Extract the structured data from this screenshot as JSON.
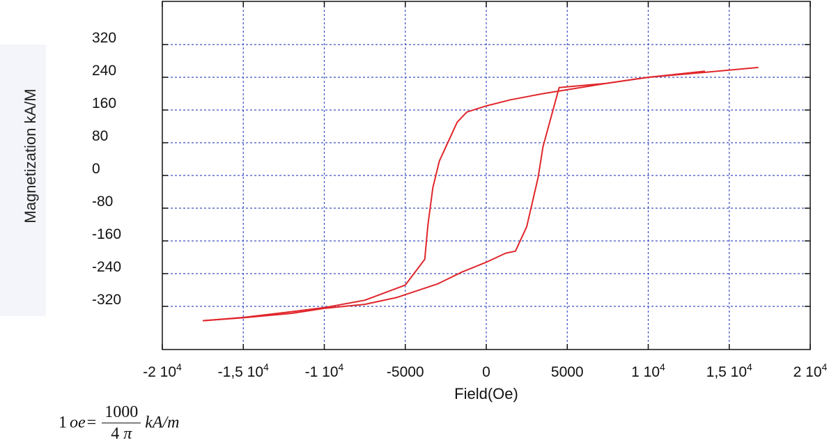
{
  "chart_data": {
    "type": "line",
    "xlabel": "Field(Oe)",
    "ylabel": "Magnetization kA/M",
    "xlim": [
      -20000,
      20000
    ],
    "ylim": [
      -400,
      400
    ],
    "grid": true,
    "x_ticks": [
      {
        "value": -20000,
        "mantissa": "-2",
        "exponent": "4"
      },
      {
        "value": -15000,
        "mantissa": "-1,5",
        "exponent": "4"
      },
      {
        "value": -10000,
        "mantissa": "-1",
        "exponent": "4"
      },
      {
        "value": -5000,
        "mantissa": "-5000",
        "exponent": ""
      },
      {
        "value": 0,
        "mantissa": "0",
        "exponent": ""
      },
      {
        "value": 5000,
        "mantissa": "5000",
        "exponent": ""
      },
      {
        "value": 10000,
        "mantissa": "1",
        "exponent": "4"
      },
      {
        "value": 15000,
        "mantissa": "1,5",
        "exponent": "4"
      },
      {
        "value": 20000,
        "mantissa": "2",
        "exponent": "4"
      }
    ],
    "y_ticks": [
      320,
      240,
      160,
      80,
      0,
      -80,
      -160,
      -240,
      -320
    ],
    "series": [
      {
        "color": "#e0262b",
        "x": [
          -17500,
          -15000,
          -12000,
          -10000,
          -7500,
          -5000,
          -3800,
          -3600,
          -3300,
          -2900,
          -1800,
          -1200,
          0,
          1500,
          3500,
          7400,
          10000,
          13500,
          16800
        ],
        "y": [
          -355,
          -347,
          -333,
          -323,
          -305,
          -268,
          -205,
          -120,
          -30,
          35,
          130,
          155,
          170,
          185,
          200,
          225,
          240,
          252,
          264
        ]
      },
      {
        "color": "#e0262b",
        "x": [
          -17500,
          -15000,
          -12000,
          -10000,
          -7500,
          -5500,
          -3000,
          -1500,
          0,
          1200,
          1800,
          2500,
          3200,
          3500,
          4500,
          7400,
          10000,
          13500
        ],
        "y": [
          -355,
          -348,
          -337,
          -325,
          -315,
          -298,
          -265,
          -236,
          -212,
          -190,
          -185,
          -125,
          -5,
          70,
          215,
          225,
          240,
          255
        ]
      }
    ]
  },
  "formula": {
    "lhs_number": "1",
    "lhs_unit": "oe",
    "equals": "=",
    "numerator": "1000",
    "denominator_number": "4",
    "denominator_symbol": "π",
    "rhs_unit": "kA/m"
  }
}
